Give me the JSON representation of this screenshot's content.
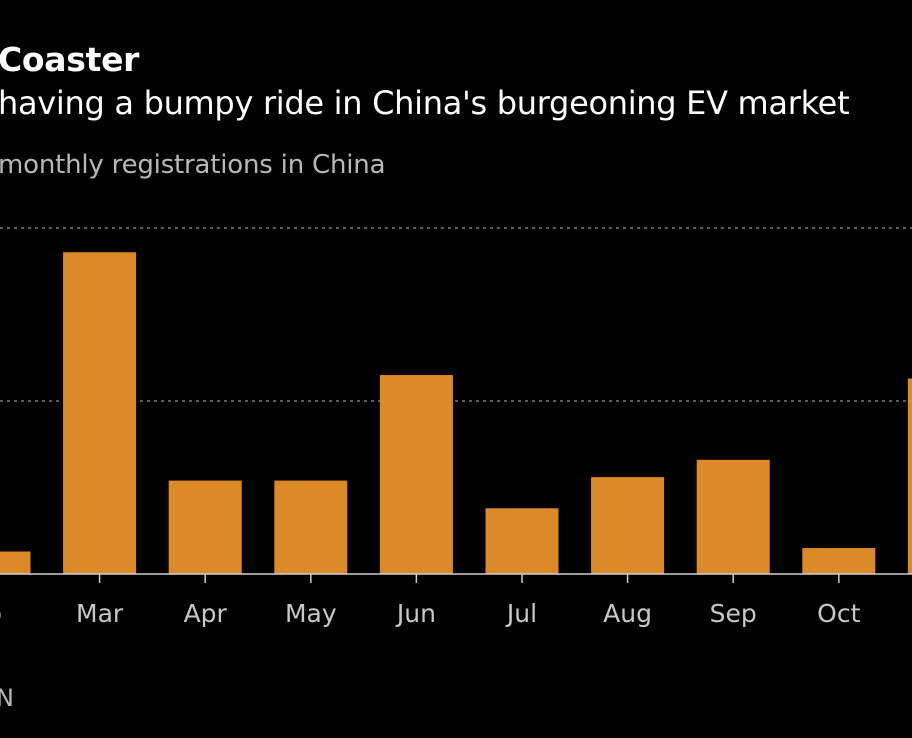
{
  "title": "Coaster",
  "subtitle": "having a bumpy ride in China's burgeoning EV market",
  "unit_label": "monthly registrations in China",
  "source": "N",
  "colors": {
    "bar": "#dc8a27",
    "background": "#000000",
    "grid": "#7a7a7a",
    "axis": "#cfcfcf",
    "text": "#ffffff",
    "muted": "#b8b8b8"
  },
  "chart_data": {
    "type": "bar",
    "categories": [
      "b",
      "Mar",
      "Apr",
      "May",
      "Jun",
      "Jul",
      "Aug",
      "Sep",
      "Oct",
      ""
    ],
    "values": [
      0.13,
      1.86,
      0.54,
      0.54,
      1.15,
      0.38,
      0.56,
      0.66,
      0.15,
      1.13
    ],
    "ylim": [
      0,
      2
    ],
    "gridlines": [
      1,
      2
    ],
    "grid": true,
    "xlabel": "",
    "ylabel": ""
  }
}
